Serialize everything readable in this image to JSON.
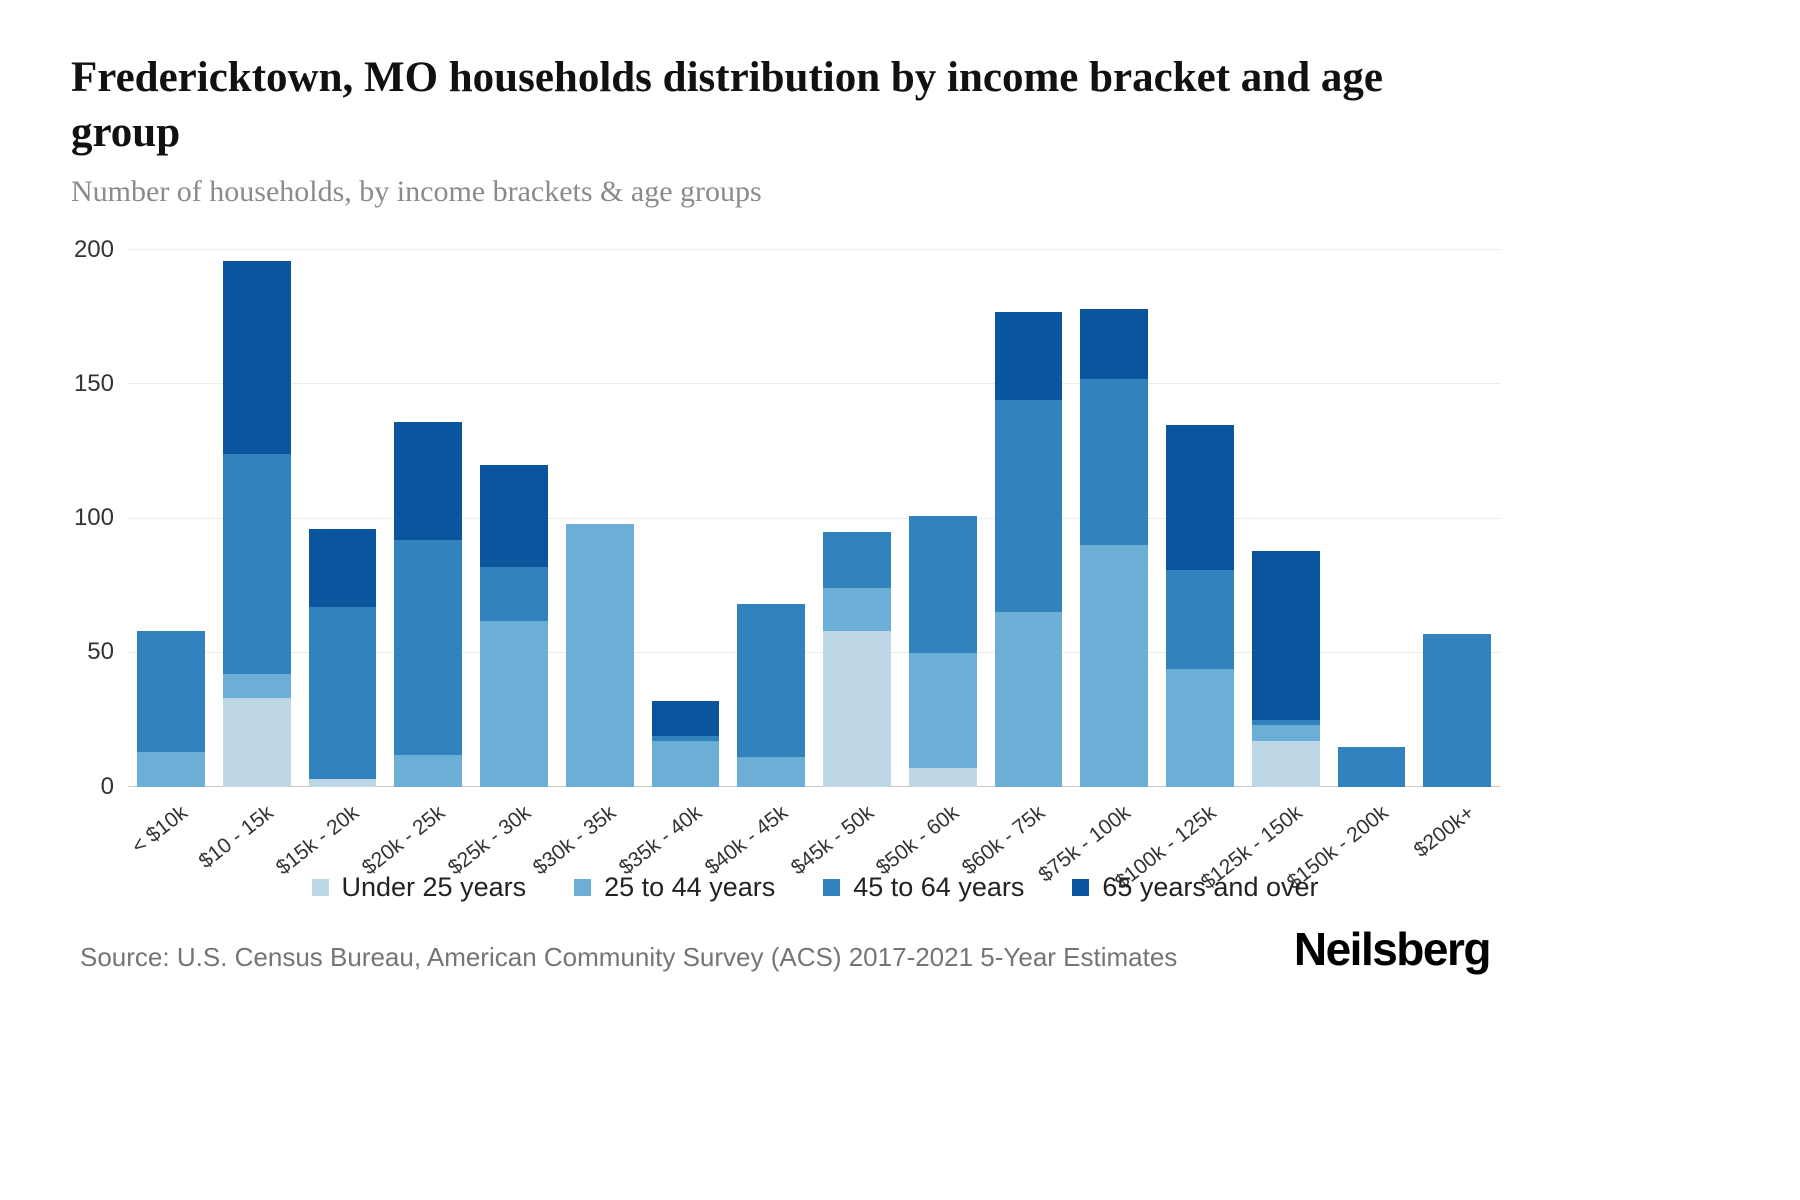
{
  "header": {
    "title": "Fredericktown, MO households distribution by income bracket and age group",
    "subtitle": "Number of households, by income brackets & age groups"
  },
  "footer": {
    "source": "Source: U.S. Census Bureau, American Community Survey (ACS) 2017-2021 5-Year Estimates",
    "brand": "Neilsberg"
  },
  "chart_data": {
    "type": "bar",
    "stacked": true,
    "title": "Fredericktown, MO households distribution by income bracket and age group",
    "subtitle": "Number of households, by income brackets & age groups",
    "xlabel": "",
    "ylabel": "Number of households",
    "ylim": [
      0,
      200
    ],
    "yticks": [
      0,
      50,
      100,
      150,
      200
    ],
    "grid": true,
    "legend_position": "bottom",
    "categories": [
      "< $10k",
      "$10 - 15k",
      "$15k - 20k",
      "$20k - 25k",
      "$25k - 30k",
      "$30k - 35k",
      "$35k - 40k",
      "$40k - 45k",
      "$45k - 50k",
      "$50k - 60k",
      "$60k - 75k",
      "$75k - 100k",
      "$100k - 125k",
      "$125k - 150k",
      "$150k - 200k",
      "$200k+"
    ],
    "series": [
      {
        "name": "Under 25 years",
        "color": "#bdd7e7",
        "values": [
          0,
          33,
          3,
          0,
          0,
          0,
          0,
          0,
          58,
          7,
          0,
          0,
          0,
          17,
          0,
          0
        ]
      },
      {
        "name": "25 to 44 years",
        "color": "#6baed6",
        "values": [
          13,
          9,
          0,
          12,
          62,
          98,
          17,
          11,
          16,
          43,
          65,
          90,
          44,
          6,
          0,
          0
        ]
      },
      {
        "name": "45 to 64 years",
        "color": "#3182bd",
        "values": [
          45,
          82,
          64,
          80,
          20,
          0,
          2,
          57,
          21,
          51,
          79,
          62,
          37,
          2,
          15,
          57
        ]
      },
      {
        "name": "65 years and over",
        "color": "#0b559f",
        "values": [
          0,
          72,
          29,
          44,
          38,
          0,
          13,
          0,
          0,
          0,
          33,
          26,
          54,
          63,
          0,
          0
        ]
      }
    ]
  }
}
